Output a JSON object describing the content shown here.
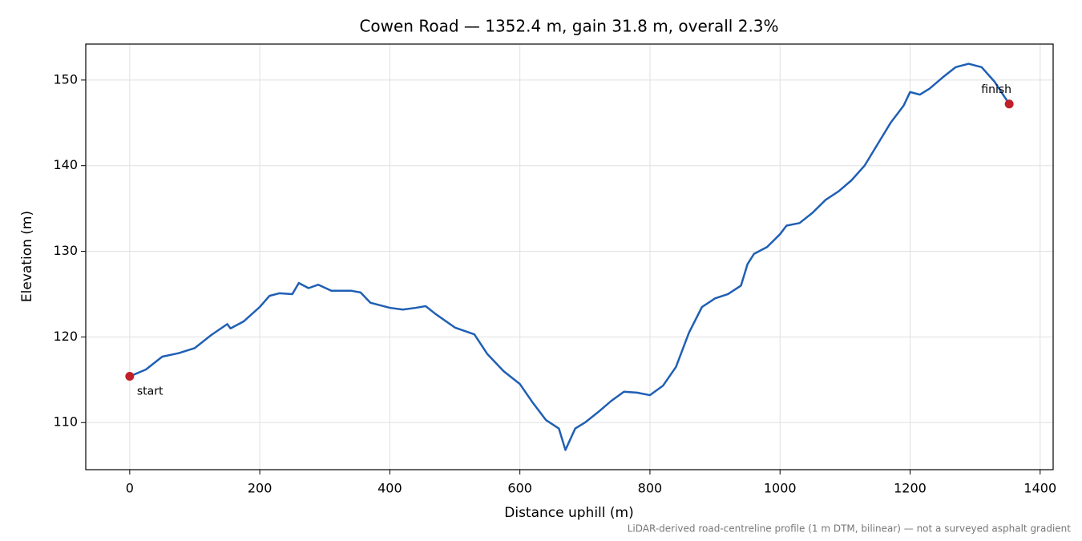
{
  "chart_data": {
    "type": "line",
    "title": "Cowen Road — 1352.4 m, gain 31.8 m, overall 2.3%",
    "x_label": "Distance uphill (m)",
    "y_label": "Elevation (m)",
    "footnote": "LiDAR-derived road-centreline profile (1 m DTM, bilinear) — not a surveyed asphalt gradient",
    "x": [
      0,
      25,
      50,
      75,
      100,
      125,
      150,
      155,
      175,
      200,
      215,
      230,
      250,
      260,
      275,
      290,
      310,
      340,
      355,
      370,
      400,
      420,
      440,
      455,
      470,
      500,
      530,
      550,
      575,
      600,
      620,
      640,
      660,
      670,
      685,
      700,
      720,
      740,
      760,
      780,
      800,
      820,
      840,
      860,
      880,
      900,
      920,
      940,
      950,
      960,
      980,
      1000,
      1010,
      1030,
      1050,
      1070,
      1090,
      1110,
      1130,
      1150,
      1170,
      1190,
      1200,
      1215,
      1230,
      1250,
      1270,
      1290,
      1310,
      1330,
      1352.4
    ],
    "series": [
      {
        "color": "#1f5fb4",
        "values": [
          115.4,
          116.2,
          117.7,
          118.1,
          118.7,
          120.2,
          121.5,
          121.0,
          121.8,
          123.5,
          124.8,
          125.1,
          125.0,
          126.3,
          125.7,
          126.1,
          125.4,
          125.4,
          125.2,
          124.0,
          123.4,
          123.2,
          123.4,
          123.6,
          122.7,
          121.1,
          120.3,
          118.0,
          116.0,
          114.5,
          112.3,
          110.3,
          109.3,
          106.8,
          109.3,
          110.0,
          111.2,
          112.5,
          113.6,
          113.5,
          113.2,
          114.3,
          116.5,
          120.5,
          123.5,
          124.5,
          125.0,
          126.0,
          128.5,
          129.7,
          130.5,
          132.0,
          133.0,
          133.3,
          134.5,
          136.0,
          137.0,
          138.3,
          140.0,
          142.5,
          145.0,
          147.0,
          148.6,
          148.3,
          149.0,
          150.3,
          151.5,
          151.9,
          151.5,
          149.8,
          147.2
        ]
      }
    ],
    "markers": [
      {
        "label": "start",
        "x": 0,
        "y": 115.4
      },
      {
        "label": "finish",
        "x": 1352.4,
        "y": 147.2
      }
    ],
    "marker_color": "#c0202a",
    "xlim": [
      -67.6,
      1420
    ],
    "ylim": [
      104.5,
      154.2
    ],
    "xticks": [
      0,
      200,
      400,
      600,
      800,
      1000,
      1200,
      1400
    ],
    "yticks": [
      110,
      120,
      130,
      140,
      150
    ],
    "grid": true
  }
}
